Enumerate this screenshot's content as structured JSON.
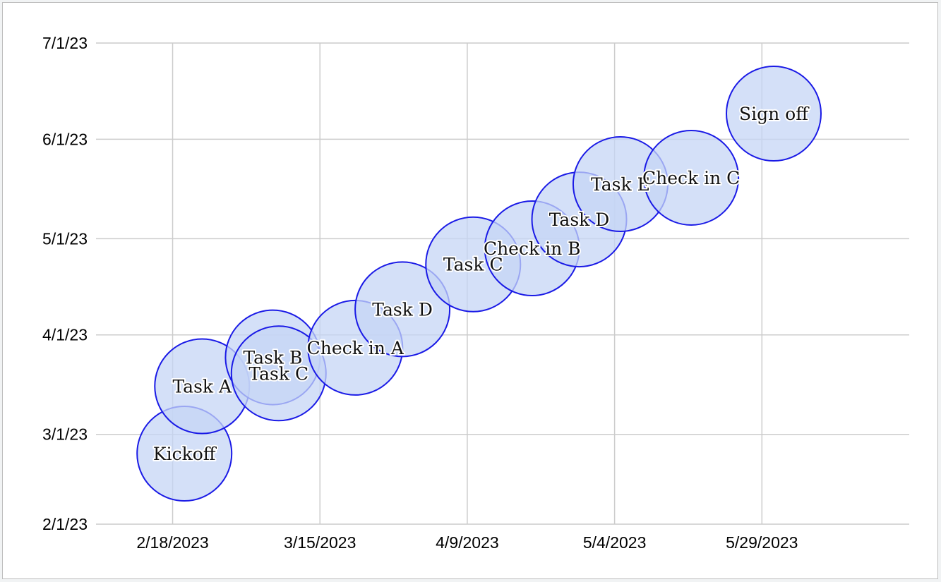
{
  "chart_data": {
    "type": "scatter",
    "style": "bubble",
    "title": "",
    "xlabel": "",
    "ylabel": "",
    "x_is_date": true,
    "y_is_date": true,
    "xlim": [
      "2023-02-05",
      "2023-06-23"
    ],
    "ylim": [
      "2023-02-01",
      "2023-07-01"
    ],
    "x_ticks": [
      {
        "value": "2023-02-18",
        "label": "2/18/2023"
      },
      {
        "value": "2023-03-15",
        "label": "3/15/2023"
      },
      {
        "value": "2023-04-09",
        "label": "4/9/2023"
      },
      {
        "value": "2023-05-04",
        "label": "5/4/2023"
      },
      {
        "value": "2023-05-29",
        "label": "5/29/2023"
      }
    ],
    "y_ticks": [
      {
        "value": "2023-02-01",
        "label": "2/1/23"
      },
      {
        "value": "2023-03-01",
        "label": "3/1/23"
      },
      {
        "value": "2023-04-01",
        "label": "4/1/23"
      },
      {
        "value": "2023-05-01",
        "label": "5/1/23"
      },
      {
        "value": "2023-06-01",
        "label": "6/1/23"
      },
      {
        "value": "2023-07-01",
        "label": "7/1/23"
      }
    ],
    "grid": true,
    "legend": "none",
    "colors": {
      "fill": "#c5d6f5",
      "stroke": "#1a1ae6",
      "grid": "#cccccc"
    },
    "points": [
      {
        "label": "Kickoff",
        "x": "2023-02-20",
        "y": "2023-02-23"
      },
      {
        "label": "Task A",
        "x": "2023-02-23",
        "y": "2023-03-16"
      },
      {
        "label": "Task B",
        "x": "2023-03-07",
        "y": "2023-03-25"
      },
      {
        "label": "Task C",
        "x": "2023-03-08",
        "y": "2023-03-20"
      },
      {
        "label": "Check in A",
        "x": "2023-03-21",
        "y": "2023-03-28"
      },
      {
        "label": "Task D",
        "x": "2023-03-29",
        "y": "2023-04-09"
      },
      {
        "label": "Task C",
        "x": "2023-04-10",
        "y": "2023-04-23"
      },
      {
        "label": "Check in B",
        "x": "2023-04-20",
        "y": "2023-04-28"
      },
      {
        "label": "Task D",
        "x": "2023-04-28",
        "y": "2023-05-07"
      },
      {
        "label": "Task E",
        "x": "2023-05-05",
        "y": "2023-05-18"
      },
      {
        "label": "Check in C",
        "x": "2023-05-17",
        "y": "2023-05-20"
      },
      {
        "label": "Sign off",
        "x": "2023-05-31",
        "y": "2023-06-09"
      }
    ]
  }
}
